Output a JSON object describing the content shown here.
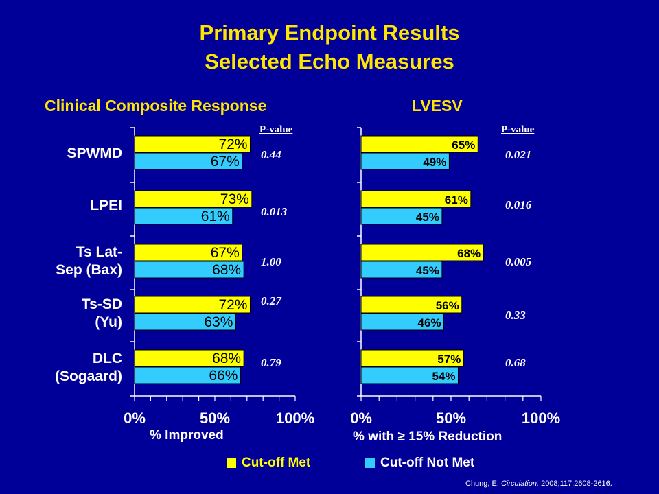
{
  "title_line1": "Primary Endpoint Results",
  "title_line2": "Selected Echo Measures",
  "colors": {
    "background": "#000099",
    "cut_off_met": "#FFFF00",
    "cut_off_not_met": "#33CCFF",
    "title": "#FFE600"
  },
  "legend": {
    "met": "Cut-off Met",
    "not_met": "Cut-off Not Met"
  },
  "pvalue_header": "P-value",
  "citation_text": "Chung, E. ",
  "citation_journal": "Circulation.",
  "citation_rest": " 2008;117:2608-2616.",
  "chart_data": [
    {
      "type": "bar",
      "orientation": "horizontal",
      "title": "Clinical Composite Response",
      "xlabel": "% Improved",
      "xlim": [
        0,
        100
      ],
      "xticks": [
        "0%",
        "50%",
        "100%"
      ],
      "categories": [
        "SPWMD",
        "LPEI",
        "Ts Lat-Sep (Bax)",
        "Ts-SD (Yu)",
        "DLC (Sogaard)"
      ],
      "category_lines": [
        [
          "SPWMD"
        ],
        [
          "LPEI"
        ],
        [
          "Ts Lat-",
          "Sep (Bax)"
        ],
        [
          "Ts-SD",
          "(Yu)"
        ],
        [
          "DLC",
          "(Sogaard)"
        ]
      ],
      "series": [
        {
          "name": "Cut-off Met",
          "values": [
            72,
            73,
            67,
            72,
            68
          ],
          "labels": [
            "72%",
            "73%",
            "67%",
            "72%",
            "68%"
          ]
        },
        {
          "name": "Cut-off Not Met",
          "values": [
            67,
            61,
            68,
            63,
            66
          ],
          "labels": [
            "67%",
            "61%",
            "68%",
            "63%",
            "66%"
          ]
        }
      ],
      "p_values": [
        "0.44",
        "0.013",
        "1.00",
        "0.27",
        "0.79"
      ]
    },
    {
      "type": "bar",
      "orientation": "horizontal",
      "title": "LVESV",
      "xlabel": "% with ≥ 15% Reduction",
      "xlim": [
        0,
        100
      ],
      "xticks": [
        "0%",
        "50%",
        "100%"
      ],
      "categories": [
        "SPWMD",
        "LPEI",
        "Ts Lat-Sep (Bax)",
        "Ts-SD (Yu)",
        "DLC (Sogaard)"
      ],
      "series": [
        {
          "name": "Cut-off Met",
          "values": [
            65,
            61,
            68,
            56,
            57
          ],
          "labels": [
            "65%",
            "61%",
            "68%",
            "56%",
            "57%"
          ]
        },
        {
          "name": "Cut-off Not Met",
          "values": [
            49,
            45,
            45,
            46,
            54
          ],
          "labels": [
            "49%",
            "45%",
            "45%",
            "46%",
            "54%"
          ]
        }
      ],
      "p_values": [
        "0.021",
        "0.016",
        "0.005",
        "0.33",
        "0.68"
      ]
    }
  ]
}
